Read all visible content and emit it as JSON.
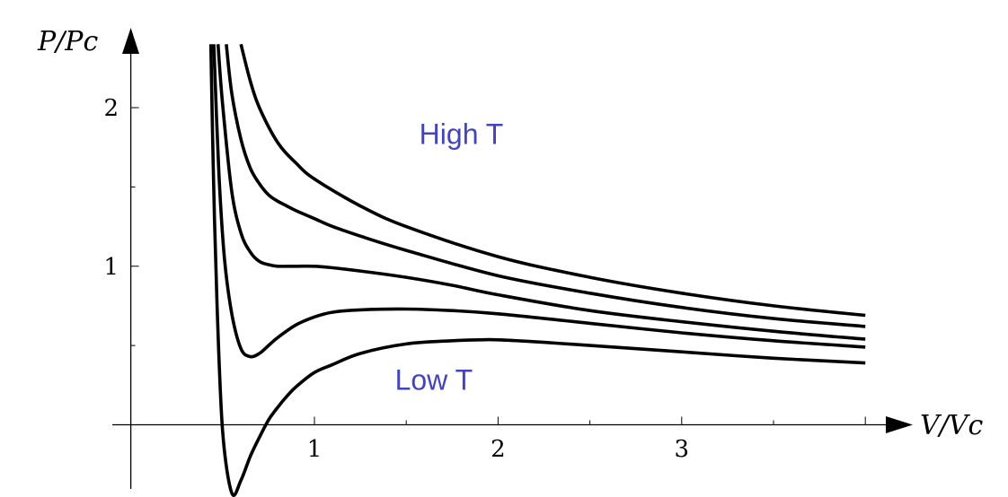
{
  "chart_data": {
    "type": "line",
    "title": "",
    "xlabel": "V/Vc",
    "ylabel": "P/Pc",
    "xlim": [
      0,
      4
    ],
    "ylim": [
      -0.4,
      2.4
    ],
    "xticks": [
      1,
      2,
      3
    ],
    "xtick_labels": [
      "1",
      "2",
      "3"
    ],
    "yticks": [
      1,
      2
    ],
    "ytick_labels": [
      "1",
      "2"
    ],
    "grid": false,
    "legend": "none",
    "curve_color": "#000000",
    "annotation_color": "#4444bb",
    "series": [
      {
        "x": [
          0.436,
          0.45,
          0.47,
          0.5,
          0.55,
          0.6,
          0.65,
          0.7,
          0.75,
          0.8,
          0.85,
          0.9,
          1.0,
          1.1,
          1.25,
          1.5,
          1.75,
          1.9,
          2.0,
          2.25,
          2.5,
          3.0,
          3.5,
          4.0
        ],
        "values": [
          2.4,
          1.57,
          0.74,
          -0.04,
          -0.43,
          -0.35,
          -0.2,
          -0.08,
          0.03,
          0.11,
          0.18,
          0.24,
          0.33,
          0.38,
          0.45,
          0.51,
          0.53,
          0.536,
          0.536,
          0.52,
          0.5,
          0.46,
          0.42,
          0.39
        ]
      },
      {
        "x": [
          0.452,
          0.48,
          0.51,
          0.55,
          0.6,
          0.65,
          0.7,
          0.75,
          0.8,
          0.9,
          1.0,
          1.1,
          1.25,
          1.5,
          1.75,
          2.0,
          2.5,
          3.0,
          3.5,
          4.0
        ],
        "values": [
          2.4,
          1.58,
          1.05,
          0.7,
          0.48,
          0.43,
          0.45,
          0.5,
          0.55,
          0.63,
          0.68,
          0.71,
          0.725,
          0.73,
          0.72,
          0.7,
          0.64,
          0.58,
          0.53,
          0.49
        ]
      },
      {
        "x": [
          0.475,
          0.5,
          0.55,
          0.6,
          0.65,
          0.7,
          0.75,
          0.8,
          0.9,
          1.0,
          1.1,
          1.25,
          1.5,
          1.75,
          2.0,
          2.5,
          3.0,
          3.5,
          4.0
        ],
        "values": [
          2.4,
          2.02,
          1.47,
          1.21,
          1.09,
          1.03,
          1.01,
          1.0,
          1.0,
          1.0,
          0.99,
          0.97,
          0.93,
          0.88,
          0.82,
          0.72,
          0.65,
          0.59,
          0.54
        ]
      },
      {
        "x": [
          0.52,
          0.55,
          0.6,
          0.65,
          0.7,
          0.75,
          0.8,
          0.85,
          0.9,
          1.0,
          1.1,
          1.25,
          1.5,
          2.0,
          2.5,
          3.0,
          3.5,
          4.0
        ],
        "values": [
          2.4,
          2.09,
          1.8,
          1.62,
          1.52,
          1.45,
          1.41,
          1.38,
          1.35,
          1.3,
          1.25,
          1.19,
          1.1,
          0.94,
          0.83,
          0.74,
          0.67,
          0.62
        ]
      },
      {
        "x": [
          0.6,
          0.65,
          0.7,
          0.8,
          0.9,
          1.0,
          1.25,
          1.5,
          2.0,
          2.5,
          3.0,
          3.5,
          4.0
        ],
        "values": [
          2.4,
          2.17,
          2.0,
          1.78,
          1.65,
          1.55,
          1.38,
          1.25,
          1.06,
          0.93,
          0.83,
          0.75,
          0.69
        ]
      }
    ],
    "annotations": [
      {
        "text": "High T",
        "x": 1.8,
        "y": 1.77
      },
      {
        "text": "Low T",
        "x": 1.65,
        "y": 0.22
      }
    ]
  }
}
